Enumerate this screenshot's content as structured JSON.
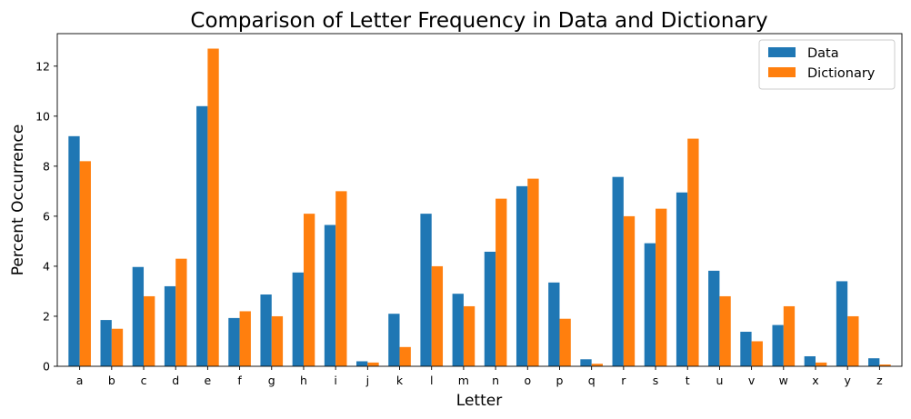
{
  "chart_data": {
    "type": "bar",
    "title": "Comparison of Letter Frequency in Data and Dictionary",
    "xlabel": "Letter",
    "ylabel": "Percent Occurrence",
    "ylim": [
      0,
      13.3
    ],
    "yticks": [
      "0",
      "2",
      "4",
      "6",
      "8",
      "10",
      "12"
    ],
    "grid": false,
    "legend_position": "top-right",
    "categories": [
      "a",
      "b",
      "c",
      "d",
      "e",
      "f",
      "g",
      "h",
      "i",
      "j",
      "k",
      "l",
      "m",
      "n",
      "o",
      "p",
      "q",
      "r",
      "s",
      "t",
      "u",
      "v",
      "w",
      "x",
      "y",
      "z"
    ],
    "series": [
      {
        "name": "Data",
        "color": "#1f77b4",
        "values": [
          9.2,
          1.85,
          3.97,
          3.2,
          10.4,
          1.93,
          2.87,
          3.75,
          5.65,
          0.2,
          2.1,
          6.1,
          2.9,
          4.58,
          7.2,
          3.35,
          0.28,
          7.57,
          4.92,
          6.95,
          3.82,
          1.38,
          1.65,
          0.4,
          3.4,
          0.32
        ]
      },
      {
        "name": "Dictionary",
        "color": "#ff7f0e",
        "values": [
          8.2,
          1.5,
          2.8,
          4.3,
          12.7,
          2.2,
          2.0,
          6.1,
          7.0,
          0.15,
          0.77,
          4.0,
          2.4,
          6.7,
          7.5,
          1.9,
          0.1,
          6.0,
          6.3,
          9.1,
          2.8,
          1.0,
          2.4,
          0.15,
          2.0,
          0.07
        ]
      }
    ]
  }
}
